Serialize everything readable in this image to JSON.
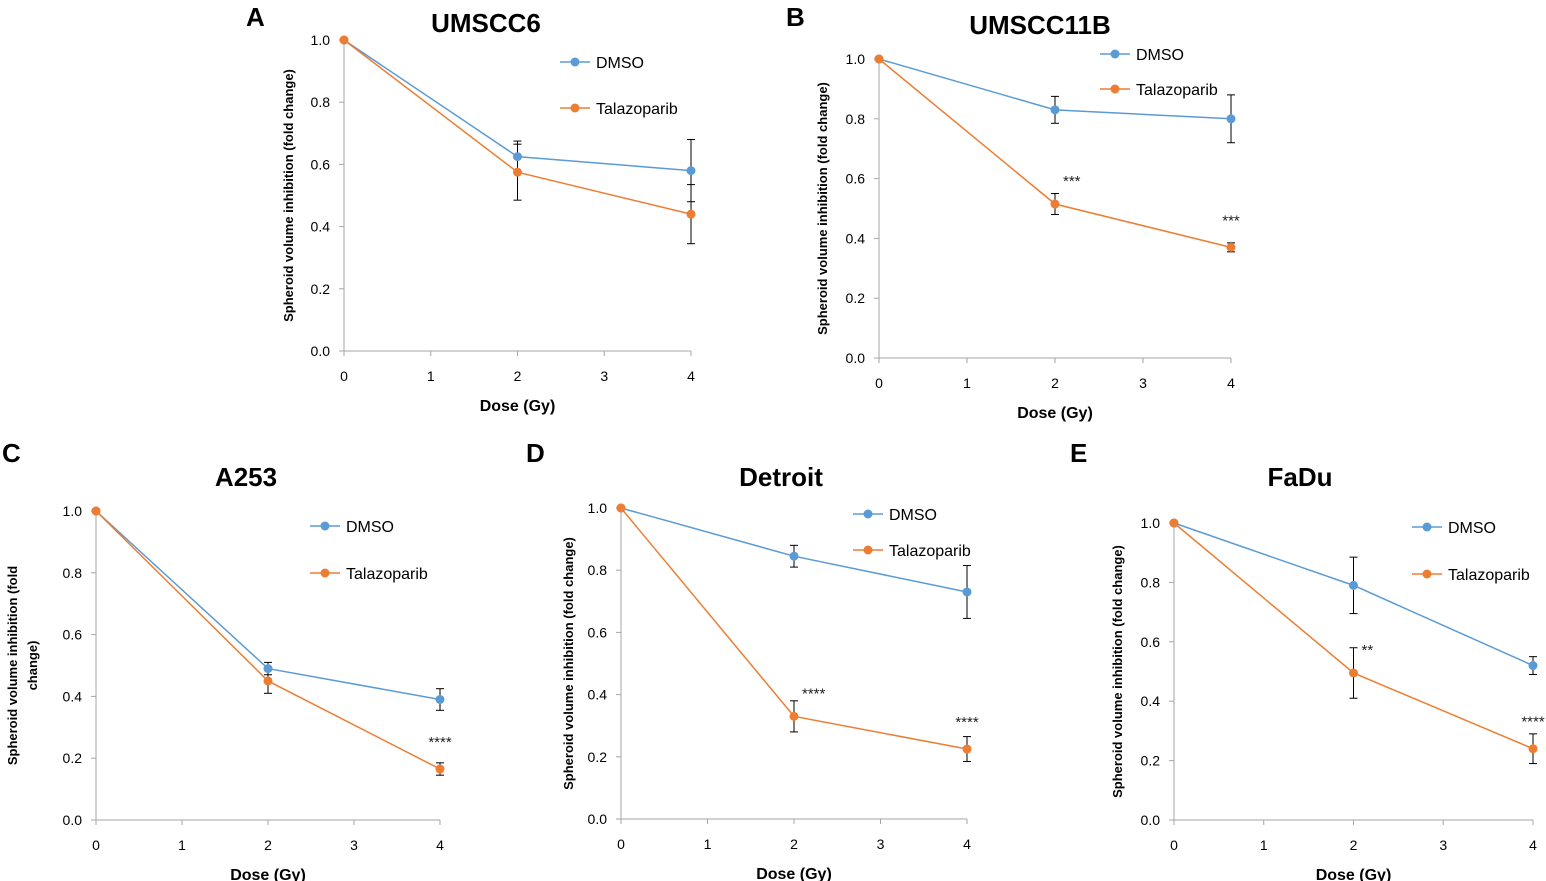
{
  "colors": {
    "dmso": "#5b9bd5",
    "talazoparib": "#ed7d31",
    "axis": "#a6a6a6",
    "errorbar": "#000000"
  },
  "chart_data": [
    {
      "panel": "A",
      "title": "UMSCC6",
      "type": "line",
      "xlabel": "Dose (Gy)",
      "ylabel": [
        "Spheroid volume inhibition (fold change)"
      ],
      "xlim": [
        0,
        4
      ],
      "ylim": [
        0,
        1
      ],
      "xticks": [
        "0",
        "1",
        "2",
        "3",
        "4"
      ],
      "yticks": [
        "0.0",
        "0.2",
        "0.4",
        "0.6",
        "0.8",
        "1.0"
      ],
      "x": [
        0,
        2,
        4
      ],
      "series": [
        {
          "name": "DMSO",
          "values": [
            1.0,
            0.625,
            0.58
          ],
          "errors": [
            0,
            0.05,
            0.1
          ]
        },
        {
          "name": "Talazoparib",
          "values": [
            1.0,
            0.575,
            0.44
          ],
          "errors": [
            0,
            0.09,
            0.095
          ]
        }
      ],
      "annotations": []
    },
    {
      "panel": "B",
      "title": "UMSCC11B",
      "type": "line",
      "xlabel": "Dose (Gy)",
      "ylabel": [
        "Spheroid volume inhibition (fold change)"
      ],
      "xlim": [
        0,
        4
      ],
      "ylim": [
        0,
        1
      ],
      "xticks": [
        "0",
        "1",
        "2",
        "3",
        "4"
      ],
      "yticks": [
        "0.0",
        "0.2",
        "0.4",
        "0.6",
        "0.8",
        "1.0"
      ],
      "x": [
        0,
        2,
        4
      ],
      "series": [
        {
          "name": "DMSO",
          "values": [
            1.0,
            0.83,
            0.8
          ],
          "errors": [
            0,
            0.045,
            0.08
          ]
        },
        {
          "name": "Talazoparib",
          "values": [
            1.0,
            0.515,
            0.37
          ],
          "errors": [
            0,
            0.035,
            0.015
          ]
        }
      ],
      "annotations": [
        {
          "x": 2,
          "y": 0.515,
          "text": "***"
        },
        {
          "x": 4,
          "y": 0.37,
          "text": "***"
        }
      ]
    },
    {
      "panel": "C",
      "title": "A253",
      "type": "line",
      "xlabel": "Dose (Gy)",
      "ylabel": [
        "Spheroid volume inhibition (fold",
        "change)"
      ],
      "xlim": [
        0,
        4
      ],
      "ylim": [
        0,
        1
      ],
      "xticks": [
        "0",
        "1",
        "2",
        "3",
        "4"
      ],
      "yticks": [
        "0.0",
        "0.2",
        "0.4",
        "0.6",
        "0.8",
        "1.0"
      ],
      "x": [
        0,
        2,
        4
      ],
      "series": [
        {
          "name": "DMSO",
          "values": [
            1.0,
            0.49,
            0.39
          ],
          "errors": [
            0,
            0.02,
            0.035
          ]
        },
        {
          "name": "Talazoparib",
          "values": [
            1.0,
            0.45,
            0.165
          ],
          "errors": [
            0,
            0.04,
            0.02
          ]
        }
      ],
      "annotations": [
        {
          "x": 4,
          "y": 0.165,
          "text": "****"
        }
      ]
    },
    {
      "panel": "D",
      "title": "Detroit",
      "type": "line",
      "xlabel": "Dose (Gy)",
      "ylabel": [
        "Spheroid volume inhibition (fold change)"
      ],
      "xlim": [
        0,
        4
      ],
      "ylim": [
        0,
        1
      ],
      "xticks": [
        "0",
        "1",
        "2",
        "3",
        "4"
      ],
      "yticks": [
        "0.0",
        "0.2",
        "0.4",
        "0.6",
        "0.8",
        "1.0"
      ],
      "x": [
        0,
        2,
        4
      ],
      "series": [
        {
          "name": "DMSO",
          "values": [
            1.0,
            0.845,
            0.73
          ],
          "errors": [
            0,
            0.035,
            0.085
          ]
        },
        {
          "name": "Talazoparib",
          "values": [
            1.0,
            0.33,
            0.225
          ],
          "errors": [
            0,
            0.05,
            0.04
          ]
        }
      ],
      "annotations": [
        {
          "x": 2,
          "y": 0.33,
          "text": "****"
        },
        {
          "x": 4,
          "y": 0.225,
          "text": "****"
        }
      ]
    },
    {
      "panel": "E",
      "title": "FaDu",
      "type": "line",
      "xlabel": "Dose (Gy)",
      "ylabel": [
        "Spheroid volume inhibition (fold change)"
      ],
      "xlim": [
        0,
        4
      ],
      "ylim": [
        0,
        1
      ],
      "xticks": [
        "0",
        "1",
        "2",
        "3",
        "4"
      ],
      "yticks": [
        "0.0",
        "0.2",
        "0.4",
        "0.6",
        "0.8",
        "1.0"
      ],
      "x": [
        0,
        2,
        4
      ],
      "series": [
        {
          "name": "DMSO",
          "values": [
            1.0,
            0.79,
            0.52
          ],
          "errors": [
            0,
            0.095,
            0.03
          ]
        },
        {
          "name": "Talazoparib",
          "values": [
            1.0,
            0.495,
            0.24
          ],
          "errors": [
            0,
            0.085,
            0.05
          ]
        }
      ],
      "annotations": [
        {
          "x": 2,
          "y": 0.495,
          "text": "**"
        },
        {
          "x": 4,
          "y": 0.24,
          "text": "****"
        }
      ]
    }
  ]
}
